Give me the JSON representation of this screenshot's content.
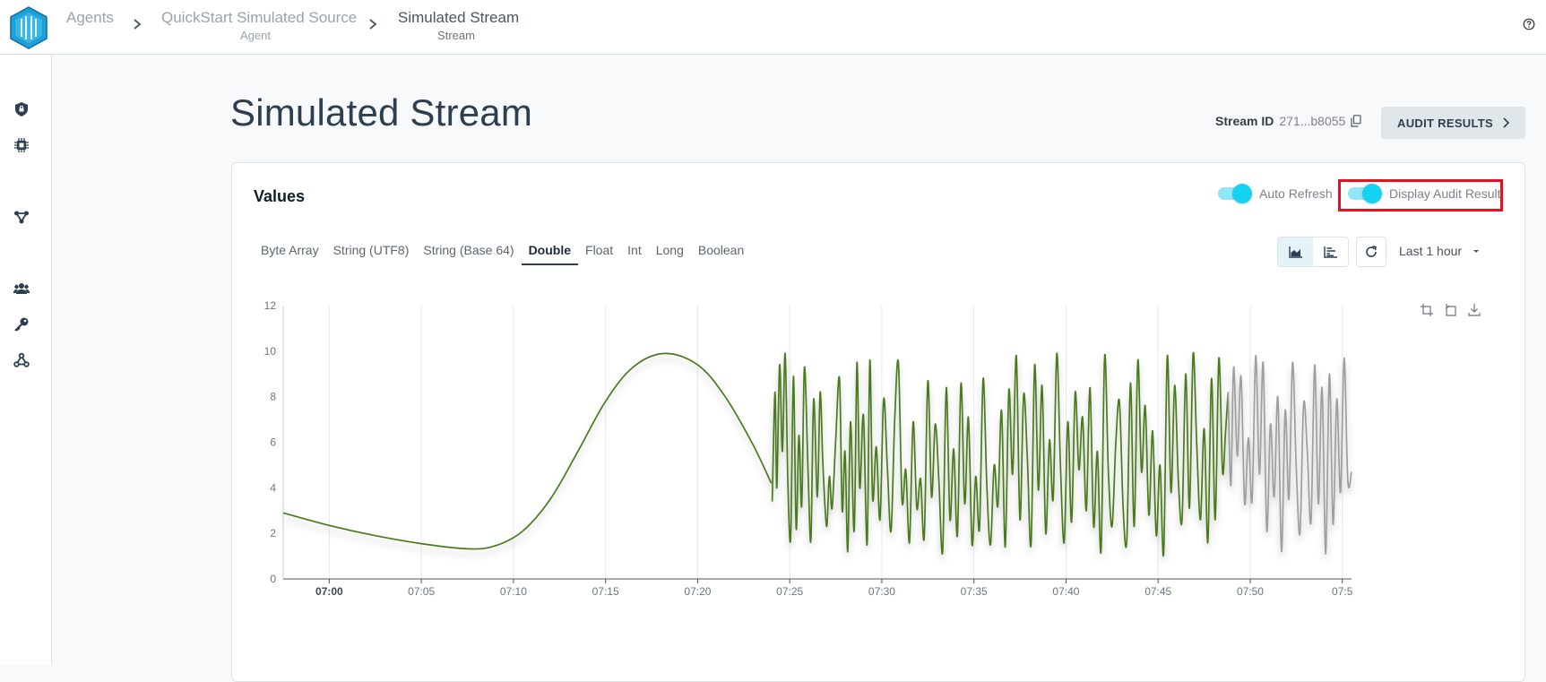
{
  "breadcrumb": [
    {
      "label": "Agents",
      "sub": ""
    },
    {
      "label": "QuickStart Simulated Source",
      "sub": "Agent"
    },
    {
      "label": "Simulated Stream",
      "sub": "Stream"
    }
  ],
  "page": {
    "title": "Simulated Stream",
    "stream_id_label": "Stream ID",
    "stream_id_value": "271...b8055",
    "audit_button": "AUDIT RESULTS"
  },
  "sidebar": {
    "items": [
      "shield-icon",
      "chip-icon",
      "network-icon",
      "users-icon",
      "key-icon",
      "webhook-icon"
    ]
  },
  "card": {
    "title": "Values",
    "auto_refresh": "Auto Refresh",
    "display_audit": "Display Audit Result",
    "tabs": [
      "Byte Array",
      "String (UTF8)",
      "String (Base 64)",
      "Double",
      "Float",
      "Int",
      "Long",
      "Boolean"
    ],
    "active_tab": "Double",
    "time_range": "Last 1 hour"
  },
  "colors": {
    "accent": "#14d2f2",
    "series_audited": "#4a7a1e",
    "series_unaudited": "#9e9e9e",
    "highlight": "#e8101f"
  },
  "chart_data": {
    "type": "line",
    "x_ticks": [
      "07:00",
      "07:05",
      "07:10",
      "07:15",
      "07:20",
      "07:25",
      "07:30",
      "07:35",
      "07:40",
      "07:45",
      "07:50",
      "07:5"
    ],
    "y_ticks": [
      "0",
      "2",
      "4",
      "6",
      "8",
      "10",
      "12"
    ],
    "ylim": [
      0,
      12
    ],
    "xlim_minutes": [
      -2.5,
      55.5
    ],
    "grid": "vertical",
    "series": [
      {
        "color": "audited",
        "points": [
          [
            -2.5,
            2.9
          ],
          [
            0,
            2.35
          ],
          [
            2.5,
            1.9
          ],
          [
            5,
            1.55
          ],
          [
            7.5,
            1.32
          ],
          [
            9,
            1.45
          ],
          [
            10.5,
            2.1
          ],
          [
            12,
            3.5
          ],
          [
            13.5,
            5.6
          ],
          [
            15,
            7.8
          ],
          [
            16.5,
            9.3
          ],
          [
            18.2,
            9.9
          ],
          [
            20,
            9.4
          ],
          [
            21.5,
            8.0
          ],
          [
            23,
            5.9
          ],
          [
            24,
            4.2
          ]
        ]
      },
      {
        "color": "audited",
        "points": [
          [
            24.05,
            3.4
          ],
          [
            24.2,
            8.2
          ],
          [
            24.3,
            4.0
          ],
          [
            24.45,
            9.4
          ],
          [
            24.6,
            5.6
          ],
          [
            24.75,
            9.9
          ],
          [
            24.9,
            4.2
          ],
          [
            25.05,
            1.8
          ],
          [
            25.2,
            8.9
          ],
          [
            25.35,
            2.2
          ],
          [
            25.5,
            6.3
          ],
          [
            25.65,
            3.2
          ],
          [
            25.8,
            9.3
          ],
          [
            26.0,
            4.6
          ],
          [
            26.15,
            1.7
          ],
          [
            26.3,
            7.9
          ],
          [
            26.5,
            3.6
          ],
          [
            26.65,
            8.2
          ],
          [
            26.8,
            5.0
          ],
          [
            27.0,
            2.3
          ],
          [
            27.15,
            4.5
          ],
          [
            27.3,
            3.1
          ],
          [
            27.5,
            6.2
          ],
          [
            27.7,
            8.8
          ],
          [
            27.85,
            3.0
          ],
          [
            28.0,
            5.6
          ],
          [
            28.15,
            1.2
          ],
          [
            28.3,
            6.9
          ],
          [
            28.5,
            2.1
          ],
          [
            28.65,
            9.5
          ],
          [
            28.8,
            4.0
          ],
          [
            29.0,
            7.2
          ],
          [
            29.2,
            1.5
          ],
          [
            29.35,
            9.6
          ],
          [
            29.5,
            3.5
          ],
          [
            29.7,
            5.8
          ],
          [
            29.9,
            2.6
          ],
          [
            30.1,
            7.9
          ],
          [
            30.3,
            4.9
          ],
          [
            30.5,
            2.1
          ],
          [
            30.7,
            7.0
          ],
          [
            30.9,
            9.5
          ],
          [
            31.1,
            3.4
          ],
          [
            31.3,
            4.8
          ],
          [
            31.5,
            1.6
          ],
          [
            31.7,
            6.9
          ],
          [
            31.9,
            3.1
          ],
          [
            32.1,
            4.4
          ],
          [
            32.3,
            1.8
          ],
          [
            32.5,
            8.7
          ],
          [
            32.7,
            3.6
          ],
          [
            32.9,
            6.8
          ],
          [
            33.1,
            4.3
          ],
          [
            33.3,
            1.2
          ],
          [
            33.5,
            8.4
          ],
          [
            33.7,
            2.6
          ],
          [
            33.9,
            5.7
          ],
          [
            34.1,
            1.9
          ],
          [
            34.3,
            8.6
          ],
          [
            34.5,
            3.3
          ],
          [
            34.7,
            7.1
          ],
          [
            34.9,
            1.5
          ],
          [
            35.1,
            4.5
          ],
          [
            35.3,
            2.2
          ],
          [
            35.5,
            8.8
          ],
          [
            35.7,
            4.1
          ],
          [
            35.9,
            1.5
          ],
          [
            36.1,
            5.0
          ],
          [
            36.3,
            3.2
          ],
          [
            36.5,
            7.4
          ],
          [
            36.7,
            1.4
          ],
          [
            36.9,
            8.3
          ],
          [
            37.1,
            4.6
          ],
          [
            37.3,
            9.8
          ],
          [
            37.5,
            2.6
          ],
          [
            37.7,
            8.1
          ],
          [
            37.9,
            5.3
          ],
          [
            38.1,
            1.5
          ],
          [
            38.3,
            9.4
          ],
          [
            38.5,
            3.9
          ],
          [
            38.7,
            8.5
          ],
          [
            38.9,
            2.0
          ],
          [
            39.1,
            6.1
          ],
          [
            39.3,
            3.5
          ],
          [
            39.5,
            9.9
          ],
          [
            39.7,
            4.9
          ],
          [
            39.9,
            1.6
          ],
          [
            40.1,
            6.9
          ],
          [
            40.3,
            2.5
          ],
          [
            40.5,
            8.2
          ],
          [
            40.7,
            4.8
          ],
          [
            40.9,
            7.1
          ],
          [
            41.1,
            3.0
          ],
          [
            41.3,
            8.4
          ],
          [
            41.5,
            2.3
          ],
          [
            41.7,
            5.6
          ],
          [
            41.9,
            1.2
          ],
          [
            42.1,
            9.8
          ],
          [
            42.3,
            4.7
          ],
          [
            42.5,
            2.3
          ],
          [
            42.7,
            5.9
          ],
          [
            42.9,
            7.8
          ],
          [
            43.1,
            3.1
          ],
          [
            43.3,
            1.7
          ],
          [
            43.5,
            8.6
          ],
          [
            43.7,
            2.3
          ],
          [
            43.9,
            9.6
          ],
          [
            44.1,
            4.7
          ],
          [
            44.3,
            7.6
          ],
          [
            44.5,
            2.8
          ],
          [
            44.7,
            6.5
          ],
          [
            44.9,
            1.9
          ],
          [
            45.1,
            5.0
          ],
          [
            45.3,
            1.1
          ],
          [
            45.5,
            9.8
          ],
          [
            45.7,
            3.8
          ],
          [
            45.9,
            8.5
          ],
          [
            46.1,
            4.3
          ],
          [
            46.3,
            2.6
          ],
          [
            46.5,
            9.0
          ],
          [
            46.7,
            3.1
          ],
          [
            46.9,
            9.9
          ],
          [
            47.1,
            5.8
          ],
          [
            47.3,
            2.6
          ],
          [
            47.5,
            6.6
          ],
          [
            47.7,
            1.6
          ],
          [
            47.9,
            8.8
          ],
          [
            48.1,
            2.6
          ],
          [
            48.3,
            9.7
          ],
          [
            48.5,
            4.7
          ],
          [
            48.65,
            6.3
          ],
          [
            48.8,
            8.2
          ]
        ]
      },
      {
        "color": "unaudited",
        "points": [
          [
            48.8,
            8.2
          ],
          [
            48.95,
            4.1
          ],
          [
            49.1,
            9.3
          ],
          [
            49.3,
            5.4
          ],
          [
            49.5,
            8.9
          ],
          [
            49.7,
            3.3
          ],
          [
            49.9,
            6.2
          ],
          [
            50.1,
            3.4
          ],
          [
            50.3,
            9.8
          ],
          [
            50.5,
            4.6
          ],
          [
            50.7,
            9.5
          ],
          [
            50.9,
            2.1
          ],
          [
            51.1,
            6.8
          ],
          [
            51.3,
            3.6
          ],
          [
            51.5,
            8.0
          ],
          [
            51.7,
            1.2
          ],
          [
            51.9,
            7.4
          ],
          [
            52.1,
            3.5
          ],
          [
            52.3,
            9.5
          ],
          [
            52.5,
            4.9
          ],
          [
            52.7,
            2.0
          ],
          [
            52.9,
            7.7
          ],
          [
            53.1,
            5.6
          ],
          [
            53.3,
            2.5
          ],
          [
            53.5,
            9.4
          ],
          [
            53.7,
            3.3
          ],
          [
            53.9,
            8.4
          ],
          [
            54.1,
            1.1
          ],
          [
            54.3,
            9.0
          ],
          [
            54.5,
            2.4
          ],
          [
            54.7,
            7.9
          ],
          [
            54.9,
            3.8
          ],
          [
            55.1,
            9.7
          ],
          [
            55.3,
            4.3
          ],
          [
            55.5,
            4.7
          ]
        ]
      }
    ]
  }
}
